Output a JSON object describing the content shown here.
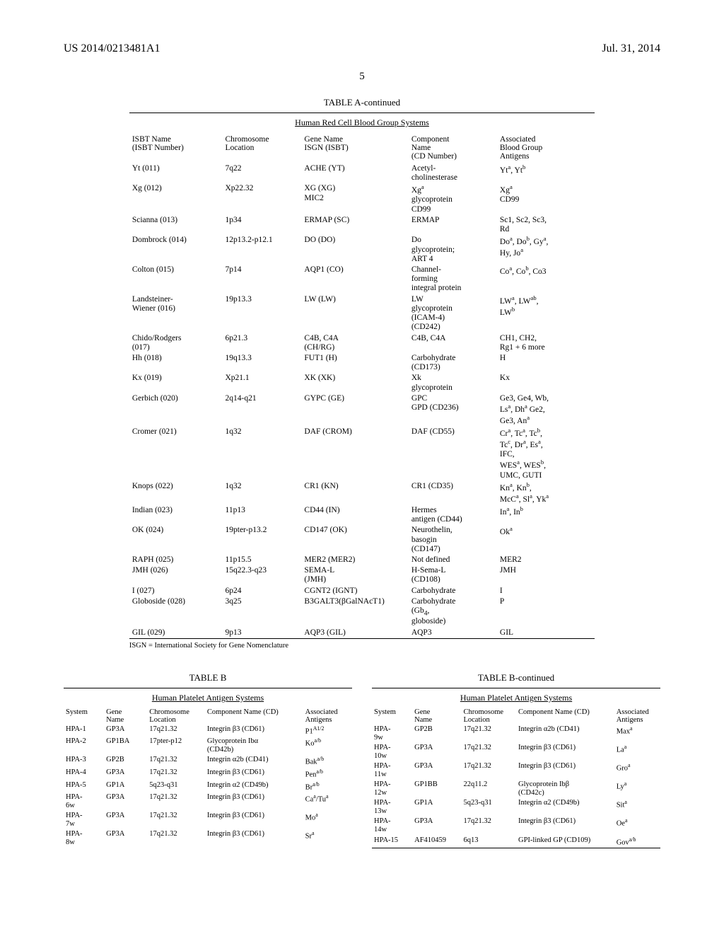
{
  "header": {
    "docnum": "US 2014/0213481A1",
    "date": "Jul. 31, 2014"
  },
  "pagenum": "5",
  "tableA": {
    "title": "TABLE A-continued",
    "subtitle": "Human Red Cell Blood Group Systems",
    "headers": {
      "c1": "ISBT Name\n(ISBT Number)",
      "c2": "Chromosome\nLocation",
      "c3": "Gene Name\nISGN (ISBT)",
      "c4": "Component\nName\n(CD Number)",
      "c5": "Associated\nBlood Group\nAntigens"
    },
    "rows": [
      {
        "c1": "Yt (011)",
        "c2": "7q22",
        "c3": "ACHE (YT)",
        "c4": "Acetyl-\ncholinesterase",
        "c5": "Yt<sup>a</sup>, Yt<sup>b</sup>"
      },
      {
        "c1": "Xg (012)",
        "c2": "Xp22.32",
        "c3": "XG (XG)\nMIC2",
        "c4": "Xg<sup>a</sup>\nglycoprotein\nCD99",
        "c5": "Xg<sup>a</sup>\nCD99"
      },
      {
        "c1": "Scianna (013)",
        "c2": "1p34",
        "c3": "ERMAP (SC)",
        "c4": "ERMAP",
        "c5": "Sc1, Sc2, Sc3,\nRd"
      },
      {
        "c1": "Dombrock (014)",
        "c2": "12p13.2-p12.1",
        "c3": "DO (DO)",
        "c4": "Do\nglycoprotein;\nART 4",
        "c5": "Do<sup>a</sup>, Do<sup>b</sup>, Gy<sup>a</sup>,\nHy, Jo<sup>a</sup>"
      },
      {
        "c1": "Colton (015)",
        "c2": "7p14",
        "c3": "AQP1 (CO)",
        "c4": "Channel-\nforming\nintegral protein",
        "c5": "Co<sup>a</sup>, Co<sup>b</sup>, Co3"
      },
      {
        "c1": "Landsteiner-\nWiener (016)",
        "c2": "19p13.3",
        "c3": "LW (LW)",
        "c4": "LW\nglycoprotein\n(ICAM-4)\n(CD242)",
        "c5": "LW<sup>a</sup>, LW<sup>ab</sup>,\nLW<sup>b</sup>"
      },
      {
        "c1": "Chido/Rodgers\n(017)",
        "c2": "6p21.3",
        "c3": "C4B, C4A\n(CH/RG)",
        "c4": "C4B, C4A",
        "c5": "CH1, CH2,\nRg1 + 6 more"
      },
      {
        "c1": "Hh (018)",
        "c2": "19q13.3",
        "c3": "FUT1 (H)",
        "c4": "Carbohydrate\n(CD173)",
        "c5": "H"
      },
      {
        "c1": "Kx (019)",
        "c2": "Xp21.1",
        "c3": "XK (XK)",
        "c4": "Xk\nglycoprotein",
        "c5": "Kx"
      },
      {
        "c1": "Gerbich (020)",
        "c2": "2q14-q21",
        "c3": "GYPC (GE)",
        "c4": "GPC\nGPD (CD236)",
        "c5": "Ge3, Ge4, Wb,\nLs<sup>a</sup>, Dh<sup>a</sup> Ge2,\nGe3, An<sup>a</sup>"
      },
      {
        "c1": "Cromer (021)",
        "c2": "1q32",
        "c3": "DAF (CROM)",
        "c4": "DAF (CD55)",
        "c5": "Cr<sup>a</sup>, Tc<sup>a</sup>, Tc<sup>b</sup>,\nTc<sup>c</sup>, Dr<sup>a</sup>, Es<sup>a</sup>,\nIFC,\nWES<sup>a</sup>, WES<sup>b</sup>,\nUMC, GUTI"
      },
      {
        "c1": "Knops (022)",
        "c2": "1q32",
        "c3": "CR1 (KN)",
        "c4": "CR1 (CD35)",
        "c5": "Kn<sup>a</sup>, Kn<sup>b</sup>,\nMcC<sup>a</sup>, Sl<sup>a</sup>, Yk<sup>a</sup>"
      },
      {
        "c1": "Indian (023)",
        "c2": "11p13",
        "c3": "CD44 (IN)",
        "c4": "Hermes\nantigen (CD44)",
        "c5": "In<sup>a</sup>, In<sup>b</sup>"
      },
      {
        "c1": "OK (024)",
        "c2": "19pter-p13.2",
        "c3": "CD147 (OK)",
        "c4": "Neurothelin,\nbasogin\n(CD147)",
        "c5": "Ok<sup>a</sup>"
      },
      {
        "c1": "RAPH (025)",
        "c2": "11p15.5",
        "c3": "MER2 (MER2)",
        "c4": "Not defined",
        "c5": "MER2"
      },
      {
        "c1": "JMH (026)",
        "c2": "15q22.3-q23",
        "c3": "SEMA-L\n(JMH)",
        "c4": "H-Sema-L\n(CD108)",
        "c5": "JMH"
      },
      {
        "c1": "I (027)",
        "c2": "6p24",
        "c3": "CGNT2 (IGNT)",
        "c4": "Carbohydrate",
        "c5": "I"
      },
      {
        "c1": "Globoside (028)",
        "c2": "3q25",
        "c3": "B3GALT3(βGalNAcT1)",
        "c4": "Carbohydrate\n(Gb<sub>4</sub>,\ngloboside)",
        "c5": "P"
      },
      {
        "c1": "GIL (029)",
        "c2": "9p13",
        "c3": "AQP3 (GIL)",
        "c4": "AQP3",
        "c5": "GIL"
      }
    ],
    "footnote": "ISGN = International Society for Gene Nomenclature"
  },
  "tableB_left": {
    "title": "TABLE B",
    "subtitle": "Human Platelet Antigen Systems",
    "headers": {
      "c1": "System",
      "c2": "Gene\nName",
      "c3": "Chromosome\nLocation",
      "c4": "Component Name (CD)",
      "c5": "Associated\nAntigens"
    },
    "rows": [
      {
        "c1": "HPA-1",
        "c2": "GP3A",
        "c3": "17q21.32",
        "c4": "Integrin β3 (CD61)",
        "c5": "P1<sup>A1/2</sup>"
      },
      {
        "c1": "HPA-2",
        "c2": "GP1BA",
        "c3": "17pter-p12",
        "c4": "Glycoprotein Ibα\n(CD42b)",
        "c5": "Ko<sup>a/b</sup>"
      },
      {
        "c1": "HPA-3",
        "c2": "GP2B",
        "c3": "17q21.32",
        "c4": "Integrin α2b (CD41)",
        "c5": "Bak<sup>a/b</sup>"
      },
      {
        "c1": "HPA-4",
        "c2": "GP3A",
        "c3": "17q21.32",
        "c4": "Integrin β3 (CD61)",
        "c5": "Pen<sup>a/b</sup>"
      },
      {
        "c1": "HPA-5",
        "c2": "GP1A",
        "c3": "5q23-q31",
        "c4": "Integrin α2 (CD49b)",
        "c5": "Br<sup>a/b</sup>"
      },
      {
        "c1": "HPA-\n6w",
        "c2": "GP3A",
        "c3": "17q21.32",
        "c4": "Integrin β3 (CD61)",
        "c5": "Ca<sup>a</sup>/Tu<sup>a</sup>"
      },
      {
        "c1": "HPA-\n7w",
        "c2": "GP3A",
        "c3": "17q21.32",
        "c4": "Integrin β3 (CD61)",
        "c5": "Mo<sup>a</sup>"
      },
      {
        "c1": "HPA-\n8w",
        "c2": "GP3A",
        "c3": "17q21.32",
        "c4": "Integrin β3 (CD61)",
        "c5": "Sr<sup>a</sup>"
      }
    ]
  },
  "tableB_right": {
    "title": "TABLE B-continued",
    "subtitle": "Human Platelet Antigen Systems",
    "headers": {
      "c1": "System",
      "c2": "Gene\nName",
      "c3": "Chromosome\nLocation",
      "c4": "Component Name (CD)",
      "c5": "Associated\nAntigens"
    },
    "rows": [
      {
        "c1": "HPA-\n9w",
        "c2": "GP2B",
        "c3": "17q21.32",
        "c4": "Integrin α2b (CD41)",
        "c5": "Max<sup>a</sup>"
      },
      {
        "c1": "HPA-\n10w",
        "c2": "GP3A",
        "c3": "17q21.32",
        "c4": "Integrin β3 (CD61)",
        "c5": "La<sup>a</sup>"
      },
      {
        "c1": "HPA-\n11w",
        "c2": "GP3A",
        "c3": "17q21.32",
        "c4": "Integrin β3 (CD61)",
        "c5": "Gro<sup>a</sup>"
      },
      {
        "c1": "HPA-\n12w",
        "c2": "GP1BB",
        "c3": "22q11.2",
        "c4": "Glycoprotein Ibβ\n(CD42c)",
        "c5": "Ly<sup>a</sup>"
      },
      {
        "c1": "HPA-\n13w",
        "c2": "GP1A",
        "c3": "5q23-q31",
        "c4": "Integrin α2 (CD49b)",
        "c5": "Sit<sup>a</sup>"
      },
      {
        "c1": "HPA-\n14w",
        "c2": "GP3A",
        "c3": "17q21.32",
        "c4": "Integrin β3 (CD61)",
        "c5": "Oe<sup>a</sup>"
      },
      {
        "c1": "HPA-15",
        "c2": "AF410459",
        "c3": "6q13",
        "c4": "GPI-linked GP (CD109)",
        "c5": "Gov<sup>a/b</sup>"
      }
    ]
  }
}
